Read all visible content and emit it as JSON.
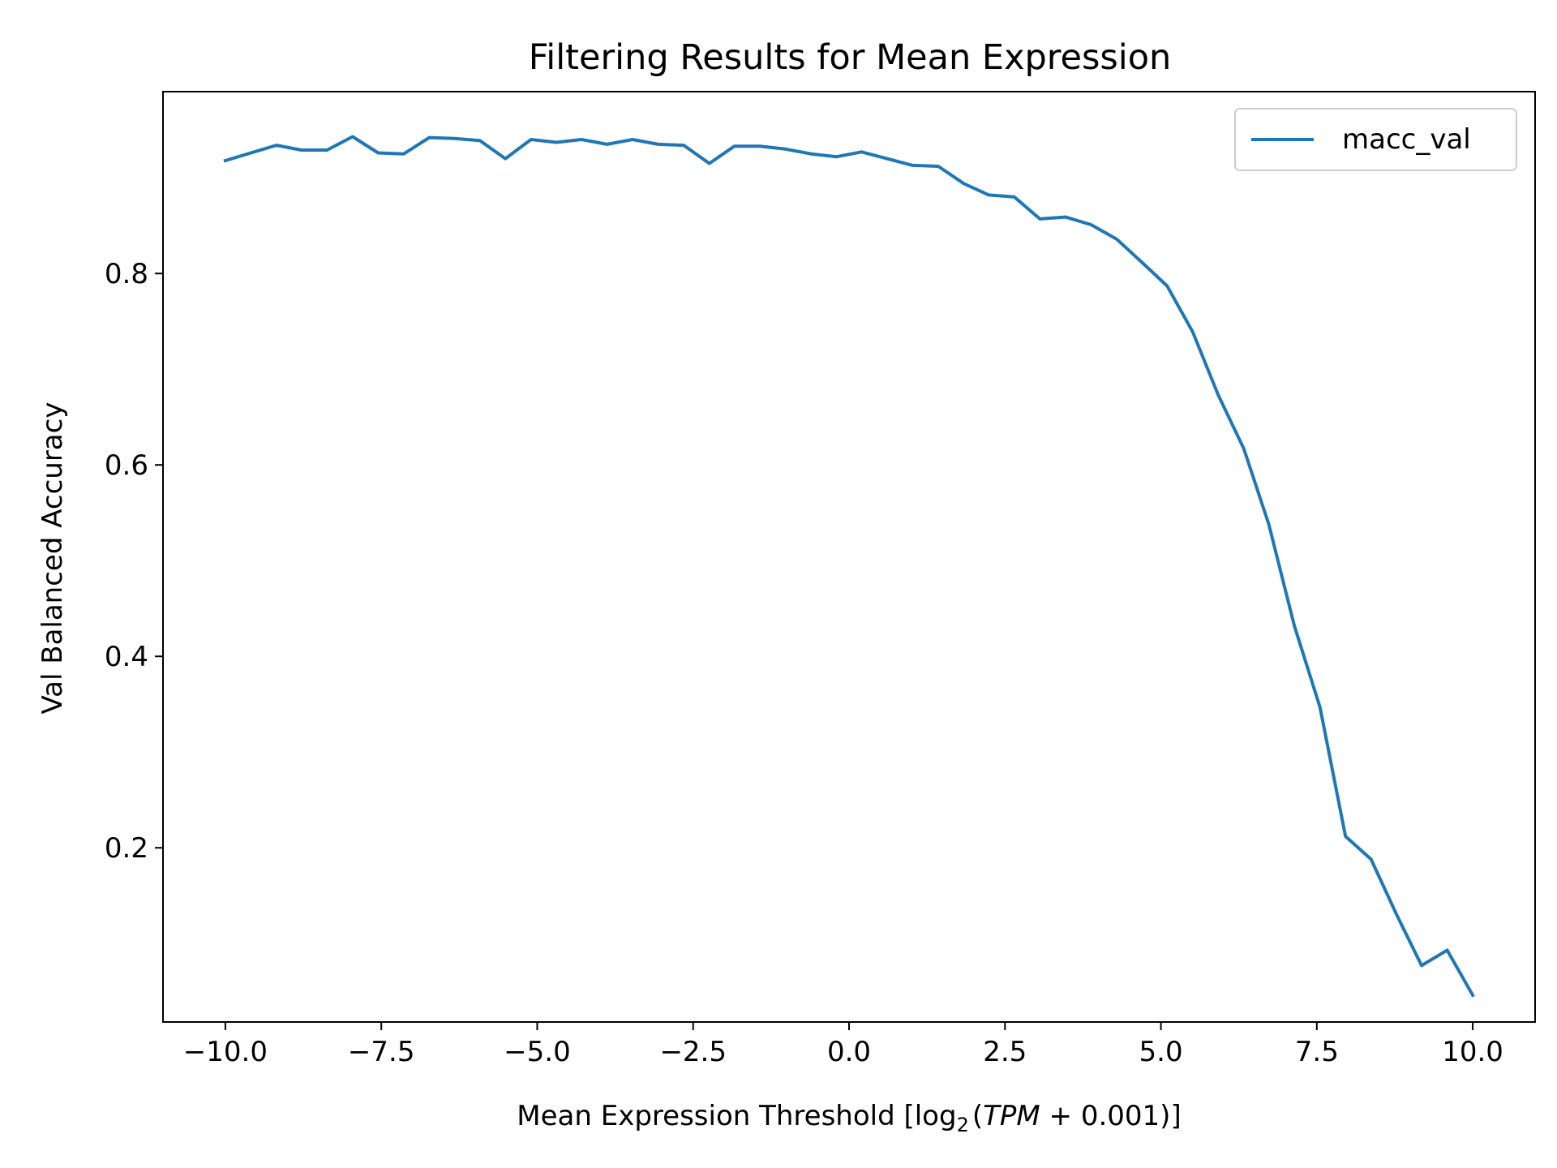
{
  "chart_data": {
    "type": "line",
    "title": "Filtering Results for Mean Expression",
    "xlabel": {
      "prefix": "Mean Expression Threshold [log",
      "sub": "2",
      "open": "(",
      "var": "TPM",
      "rest": " + 0.001)]"
    },
    "ylabel": "Val Balanced Accuracy",
    "xlim": [
      -11.0,
      11.0
    ],
    "ylim": [
      0.018,
      0.99
    ],
    "xticks": [
      -10,
      -7.5,
      -5,
      -2.5,
      0,
      2.5,
      5,
      7.5,
      10
    ],
    "xtick_labels": [
      "−10.0",
      "−7.5",
      "−5.0",
      "−2.5",
      "0.0",
      "2.5",
      "5.0",
      "7.5",
      "10.0"
    ],
    "yticks": [
      0.2,
      0.4,
      0.6,
      0.8
    ],
    "ytick_labels": [
      "0.2",
      "0.4",
      "0.6",
      "0.8"
    ],
    "grid": false,
    "legend_position": "top-right",
    "series": [
      {
        "name": "macc_val",
        "color": "#1f77b4",
        "x": [
          -10.0,
          -9.59,
          -9.18,
          -8.78,
          -8.37,
          -7.96,
          -7.55,
          -7.14,
          -6.73,
          -6.33,
          -5.92,
          -5.51,
          -5.1,
          -4.69,
          -4.29,
          -3.88,
          -3.47,
          -3.06,
          -2.65,
          -2.24,
          -1.84,
          -1.43,
          -1.02,
          -0.61,
          -0.2,
          0.2,
          0.61,
          1.02,
          1.43,
          1.84,
          2.24,
          2.65,
          3.06,
          3.47,
          3.88,
          4.29,
          4.69,
          5.1,
          5.51,
          5.92,
          6.33,
          6.73,
          7.14,
          7.55,
          7.96,
          8.37,
          8.78,
          9.18,
          9.59,
          10.0
        ],
        "values": [
          0.918,
          0.926,
          0.934,
          0.929,
          0.929,
          0.943,
          0.926,
          0.925,
          0.942,
          0.941,
          0.939,
          0.92,
          0.94,
          0.937,
          0.94,
          0.935,
          0.94,
          0.935,
          0.934,
          0.915,
          0.933,
          0.933,
          0.93,
          0.925,
          0.922,
          0.927,
          0.92,
          0.913,
          0.912,
          0.894,
          0.882,
          0.88,
          0.857,
          0.859,
          0.851,
          0.836,
          0.812,
          0.787,
          0.739,
          0.673,
          0.617,
          0.538,
          0.432,
          0.347,
          0.212,
          0.188,
          0.13,
          0.077,
          0.093,
          0.046
        ]
      }
    ]
  }
}
